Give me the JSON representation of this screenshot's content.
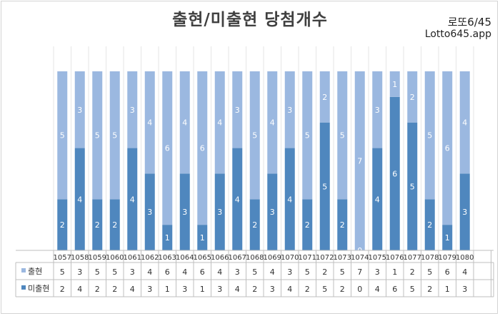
{
  "title": "출현/미출현 당첨개수",
  "brand": {
    "line1": "로또6/45",
    "line2": "Lotto645.app"
  },
  "colors": {
    "appear": "#9bb8e0",
    "notappear": "#4f87be"
  },
  "chart_data": {
    "type": "bar",
    "stacked": true,
    "title": "출현/미출현 당첨개수",
    "categories": [
      "1057",
      "1058",
      "1059",
      "1060",
      "1061",
      "1062",
      "1063",
      "1064",
      "1065",
      "1066",
      "1067",
      "1068",
      "1069",
      "1070",
      "1071",
      "1072",
      "1073",
      "1074",
      "1075",
      "1076",
      "1077",
      "1078",
      "1079",
      "1080"
    ],
    "series": [
      {
        "name": "출현",
        "values": [
          5,
          3,
          5,
          5,
          3,
          4,
          6,
          4,
          6,
          4,
          3,
          5,
          4,
          3,
          5,
          2,
          5,
          7,
          3,
          1,
          2,
          5,
          6,
          4
        ]
      },
      {
        "name": "미출현",
        "values": [
          2,
          4,
          2,
          2,
          4,
          3,
          1,
          3,
          1,
          3,
          4,
          2,
          3,
          4,
          2,
          5,
          2,
          0,
          4,
          6,
          5,
          2,
          1,
          3
        ]
      }
    ],
    "ylim": [
      0,
      7
    ],
    "legend": "data-table"
  }
}
